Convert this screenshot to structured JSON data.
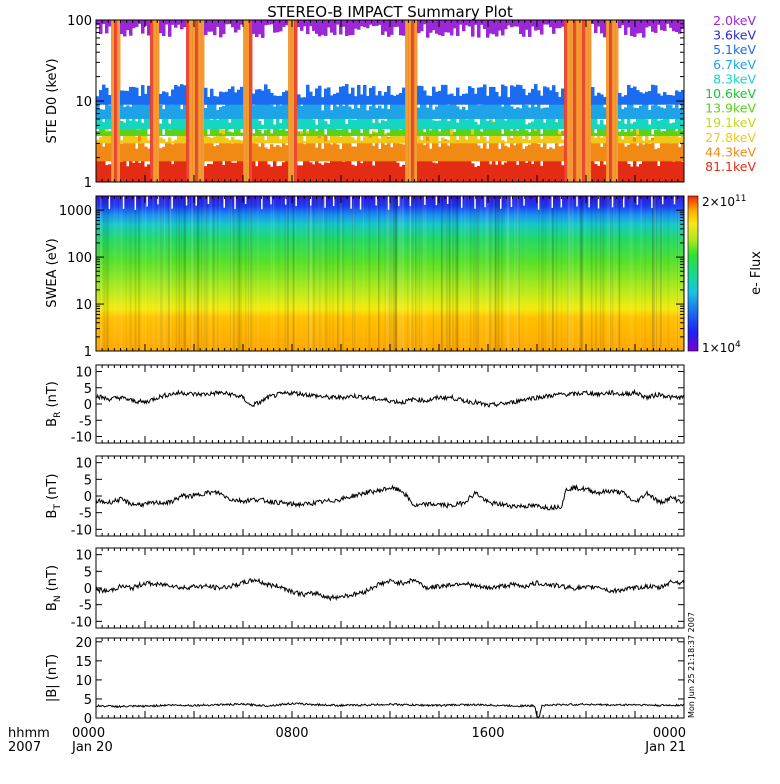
{
  "title": "STEREO-B IMPACT Summary Plot",
  "time_axis": {
    "hhmm_label": "hhmm",
    "year_label": "2007",
    "ticks": [
      {
        "hours": 0,
        "label": "0000",
        "date": "Jan 20"
      },
      {
        "hours": 8,
        "label": "0800",
        "date": ""
      },
      {
        "hours": 16,
        "label": "1600",
        "date": ""
      },
      {
        "hours": 24,
        "label": "0000",
        "date": "Jan 21"
      }
    ],
    "range_hours": [
      0,
      24
    ]
  },
  "footer_stamp": "Mon Jun 25 21:18:37 2007",
  "panels": {
    "ste": {
      "ylabel": "STE D0 (keV)",
      "yscale": "log",
      "ylim": [
        1,
        100
      ],
      "yticks": [
        "1",
        "10",
        "100"
      ],
      "legend": [
        {
          "label": "2.0keV",
          "color": "#9b27d6"
        },
        {
          "label": "3.6keV",
          "color": "#2a2ac8"
        },
        {
          "label": "5.1keV",
          "color": "#1a6cf0"
        },
        {
          "label": "6.7keV",
          "color": "#1fa3e8"
        },
        {
          "label": "8.3keV",
          "color": "#16d6c0"
        },
        {
          "label": "10.6keV",
          "color": "#12c830"
        },
        {
          "label": "13.9keV",
          "color": "#5ad21a"
        },
        {
          "label": "19.1keV",
          "color": "#c8d81c"
        },
        {
          "label": "27.8keV",
          "color": "#f0c81a"
        },
        {
          "label": "44.3keV",
          "color": "#f08a14"
        },
        {
          "label": "81.1keV",
          "color": "#e42c14"
        }
      ]
    },
    "swea": {
      "ylabel": "SWEA (eV)",
      "yscale": "log",
      "ylim": [
        1,
        2000
      ],
      "yticks": [
        "1",
        "10",
        "100",
        "1000"
      ],
      "colorbar_label": "e- Flux",
      "colorbar_max": "2×10",
      "colorbar_max_exp": "11",
      "colorbar_min": "1×10",
      "colorbar_min_exp": "4"
    },
    "br": {
      "ylabel_main": "B",
      "ylabel_sub": "R",
      "ylabel_unit": " (nT)",
      "ylim": [
        -12,
        12
      ],
      "yticks": [
        "10",
        "5",
        "0",
        "-5",
        "-10"
      ]
    },
    "bt": {
      "ylabel_main": "B",
      "ylabel_sub": "T",
      "ylabel_unit": " (nT)",
      "ylim": [
        -12,
        12
      ],
      "yticks": [
        "10",
        "5",
        "0",
        "-5",
        "-10"
      ]
    },
    "bn": {
      "ylabel_main": "B",
      "ylabel_sub": "N",
      "ylabel_unit": " (nT)",
      "ylim": [
        -12,
        12
      ],
      "yticks": [
        "10",
        "5",
        "0",
        "-5",
        "-10"
      ]
    },
    "bmag": {
      "ylabel": "|B| (nT)",
      "ylim": [
        0,
        21
      ],
      "yticks": [
        "20",
        "15",
        "10",
        "5",
        "0"
      ]
    }
  },
  "chart_data": [
    {
      "type": "heatmap",
      "title": "STE D0",
      "ylabel": "STE D0 (keV)",
      "ylim": [
        1,
        100
      ],
      "yscale": "log",
      "series": [
        {
          "name": "2.0keV"
        },
        {
          "name": "3.6keV"
        },
        {
          "name": "5.1keV"
        },
        {
          "name": "6.7keV"
        },
        {
          "name": "8.3keV"
        },
        {
          "name": "10.6keV"
        },
        {
          "name": "13.9keV"
        },
        {
          "name": "19.1keV"
        },
        {
          "name": "27.8keV"
        },
        {
          "name": "44.3keV"
        },
        {
          "name": "81.1keV"
        }
      ],
      "gap_intervals_hours": [
        [
          0.5,
          0.9
        ],
        [
          2.1,
          2.5
        ],
        [
          3.6,
          4.4
        ],
        [
          6.0,
          6.3
        ],
        [
          7.8,
          8.1
        ],
        [
          12.6,
          13.0
        ],
        [
          19.1,
          20.1
        ],
        [
          20.7,
          21.2
        ]
      ]
    },
    {
      "type": "heatmap",
      "title": "SWEA",
      "ylabel": "SWEA (eV)",
      "ylim": [
        1,
        2000
      ],
      "yscale": "log",
      "colorbar_range": [
        "1×10^4",
        "2×10^11"
      ],
      "profile": [
        {
          "energy_ev": 1,
          "color": "#ffa800"
        },
        {
          "energy_ev": 5,
          "color": "#ffc000"
        },
        {
          "energy_ev": 8,
          "color": "#f4ea10"
        },
        {
          "energy_ev": 20,
          "color": "#b6ea1a"
        },
        {
          "energy_ev": 80,
          "color": "#56e02a"
        },
        {
          "energy_ev": 250,
          "color": "#22d86a"
        },
        {
          "energy_ev": 500,
          "color": "#16c8c8"
        },
        {
          "energy_ev": 800,
          "color": "#1a8ef0"
        },
        {
          "energy_ev": 1200,
          "color": "#1c3ef0"
        },
        {
          "energy_ev": 2000,
          "color": "#3810d8"
        }
      ]
    },
    {
      "type": "line",
      "name": "B_R",
      "ylabel": "B_R (nT)",
      "ylim": [
        -12,
        12
      ],
      "x_hours": [
        0,
        0.5,
        1,
        1.5,
        2,
        2.5,
        3,
        3.5,
        4,
        4.5,
        5,
        5.5,
        6,
        6.3,
        6.7,
        7,
        7.5,
        8,
        8.5,
        9,
        9.5,
        10,
        10.5,
        11,
        11.5,
        12,
        12.5,
        13,
        13.5,
        14,
        14.5,
        15,
        15.5,
        16,
        16.5,
        17,
        17.5,
        18,
        18.5,
        19,
        19.5,
        20,
        20.5,
        21,
        21.5,
        22,
        22.5,
        23,
        23.5,
        24
      ],
      "values": [
        2.5,
        1.5,
        2.0,
        1.0,
        0.5,
        2.0,
        3.0,
        3.5,
        3.0,
        3.0,
        3.5,
        3.0,
        2.0,
        -0.5,
        0.5,
        2.0,
        3.0,
        3.5,
        3.0,
        2.5,
        2.0,
        2.0,
        2.5,
        2.0,
        1.5,
        1.0,
        0.5,
        1.5,
        1.0,
        2.0,
        2.0,
        1.0,
        0.5,
        -0.5,
        0.0,
        0.5,
        1.5,
        2.0,
        2.5,
        3.0,
        3.0,
        3.5,
        3.0,
        3.5,
        3.0,
        3.5,
        2.0,
        3.0,
        2.0,
        2.0
      ]
    },
    {
      "type": "line",
      "name": "B_T",
      "ylabel": "B_T (nT)",
      "ylim": [
        -12,
        12
      ],
      "x_hours": [
        0,
        0.5,
        1,
        1.5,
        2,
        2.5,
        3,
        3.5,
        4,
        4.5,
        5,
        5.5,
        6,
        6.5,
        7,
        7.5,
        8,
        8.5,
        9,
        9.5,
        10,
        10.5,
        11,
        11.5,
        12,
        12.5,
        13,
        13.5,
        14,
        14.5,
        15,
        15.5,
        16,
        16.5,
        17,
        17.5,
        18,
        18.5,
        19,
        19.2,
        19.5,
        20,
        20.5,
        21,
        21.5,
        22,
        22.5,
        23,
        23.5,
        24
      ],
      "values": [
        -1.5,
        -2.0,
        -1.0,
        -2.5,
        -2.5,
        -2.0,
        -2.0,
        0.0,
        0.0,
        1.0,
        1.0,
        -1.0,
        -1.5,
        -1.0,
        -1.5,
        -2.0,
        -2.5,
        -2.5,
        -2.0,
        -1.5,
        -1.0,
        0.0,
        1.0,
        1.5,
        2.5,
        1.5,
        -3.0,
        -2.5,
        -2.5,
        -3.0,
        -2.0,
        1.0,
        -2.0,
        -2.5,
        -3.0,
        -3.0,
        -3.0,
        -3.5,
        -3.0,
        2.0,
        2.5,
        2.0,
        1.0,
        1.5,
        1.0,
        -2.0,
        1.0,
        -2.0,
        -0.5,
        -2.0
      ]
    },
    {
      "type": "line",
      "name": "B_N",
      "ylabel": "B_N (nT)",
      "ylim": [
        -12,
        12
      ],
      "x_hours": [
        0,
        0.5,
        1,
        1.5,
        2,
        2.5,
        3,
        3.5,
        4,
        4.5,
        5,
        5.5,
        6,
        6.5,
        7,
        7.5,
        8,
        8.5,
        9,
        9.5,
        10,
        10.5,
        11,
        11.5,
        12,
        12.5,
        13,
        13.5,
        14,
        14.5,
        15,
        15.5,
        16,
        16.5,
        17,
        17.5,
        18,
        18.5,
        19,
        19.5,
        20,
        20.5,
        21,
        21.5,
        22,
        22.5,
        23,
        23.5,
        24
      ],
      "values": [
        -0.5,
        -1.0,
        0.5,
        0.0,
        1.5,
        1.0,
        1.0,
        0.0,
        0.5,
        0.5,
        0.0,
        0.5,
        1.5,
        2.5,
        1.0,
        0.5,
        -1.0,
        -2.0,
        -1.5,
        -3.0,
        -2.5,
        -2.0,
        -1.0,
        1.0,
        2.0,
        1.5,
        2.5,
        0.0,
        0.5,
        1.0,
        1.5,
        0.5,
        0.0,
        0.5,
        1.0,
        0.5,
        1.5,
        1.0,
        0.5,
        0.0,
        0.0,
        0.5,
        -1.0,
        -0.5,
        0.0,
        0.5,
        0.0,
        2.0,
        1.5
      ]
    },
    {
      "type": "line",
      "name": "|B|",
      "ylabel": "|B| (nT)",
      "ylim": [
        0,
        21
      ],
      "x_hours": [
        0,
        1,
        2,
        3,
        4,
        5,
        6,
        7,
        8,
        9,
        10,
        11,
        12,
        13,
        14,
        15,
        16,
        17,
        17.9,
        18.05,
        18.2,
        19,
        20,
        21,
        22,
        23,
        24
      ],
      "values": [
        3.2,
        3.0,
        3.1,
        3.4,
        3.3,
        3.5,
        3.6,
        3.2,
        3.8,
        3.5,
        3.3,
        3.4,
        3.6,
        3.4,
        3.3,
        3.5,
        3.4,
        3.2,
        3.2,
        -0.8,
        3.3,
        3.5,
        3.6,
        3.4,
        3.5,
        3.3,
        3.4
      ]
    }
  ]
}
